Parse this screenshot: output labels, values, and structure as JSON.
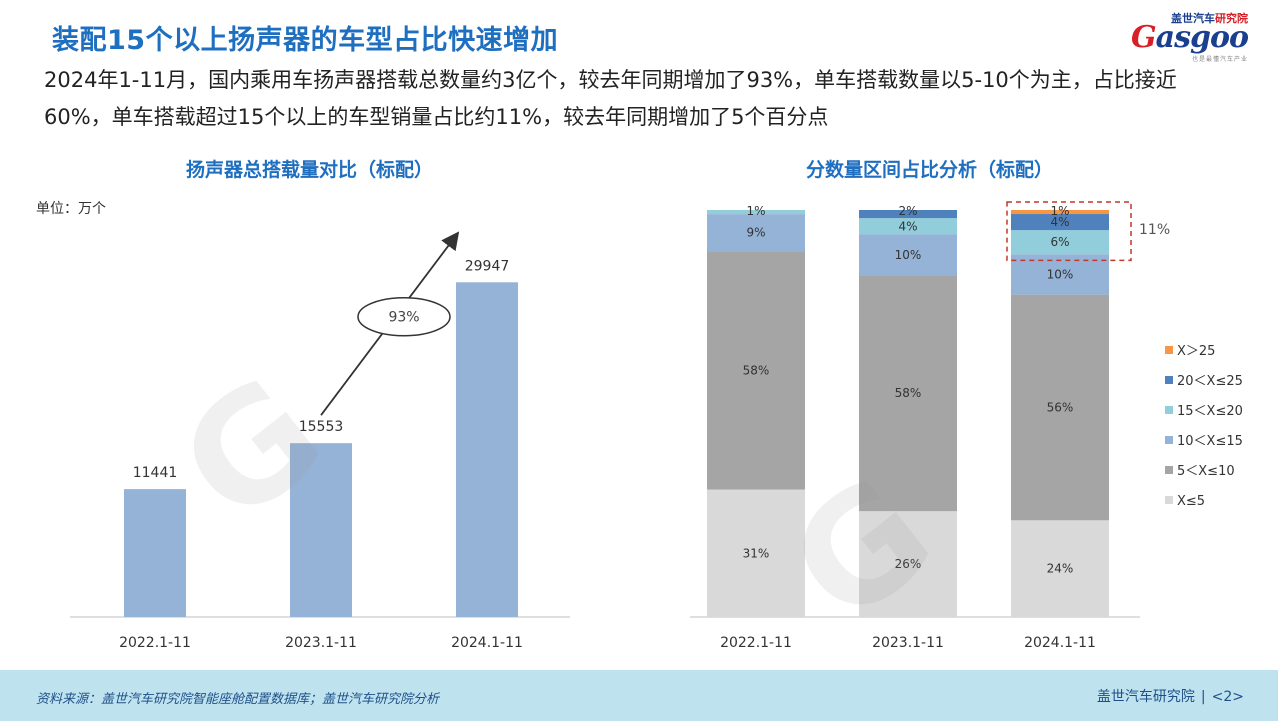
{
  "header": {
    "title": "装配15个以上扬声器的车型占比快速增加",
    "description": "2024年1-11月，国内乘用车扬声器搭载总数量约3亿个，较去年同期增加了93%，单车搭载数量以5-10个为主，占比接近60%，单车搭载超过15个以上的车型销量占比约11%，较去年同期增加了5个百分点"
  },
  "logo": {
    "cn_prefix": "盖世汽车",
    "cn_suffix": "研究院",
    "word_prefix": "G",
    "word_rest": "asgoo",
    "tagline": "也是最懂汽车产业"
  },
  "chart_data": [
    {
      "type": "bar",
      "title": "扬声器总搭载量对比（标配）",
      "unit_label": "单位：万个",
      "categories": [
        "2022.1-11",
        "2023.1-11",
        "2024.1-11"
      ],
      "values": [
        11441,
        15553,
        29947
      ],
      "ylim": [
        0,
        34000
      ],
      "color": "#95b3d7",
      "annotation": {
        "text": "93%",
        "from_category": 1,
        "to_category": 2
      }
    },
    {
      "type": "bar",
      "stacked": true,
      "percent": true,
      "title": "分数量区间占比分析（标配）",
      "categories": [
        "2022.1-11",
        "2023.1-11",
        "2024.1-11"
      ],
      "series": [
        {
          "name": "X≤5",
          "color": "#d9d9d9",
          "values": [
            31,
            26,
            24
          ],
          "labels": [
            "31%",
            "26%",
            "24%"
          ]
        },
        {
          "name": "5＜X≤10",
          "color": "#a5a5a5",
          "values": [
            58,
            58,
            56
          ],
          "labels": [
            "58%",
            "58%",
            "56%"
          ]
        },
        {
          "name": "10＜X≤15",
          "color": "#95b3d7",
          "values": [
            9,
            10,
            10
          ],
          "labels": [
            "9%",
            "10%",
            "10%"
          ]
        },
        {
          "name": "15＜X≤20",
          "color": "#92cddc",
          "values": [
            1,
            4,
            6
          ],
          "labels": [
            "1%",
            "4%",
            "6%"
          ]
        },
        {
          "name": "20＜X≤25",
          "color": "#4f81bd",
          "values": [
            0,
            2,
            4
          ],
          "labels": [
            "",
            "2%",
            "4%"
          ]
        },
        {
          "name": "X＞25",
          "color": "#f79646",
          "values": [
            0,
            0,
            1
          ],
          "labels": [
            "",
            "",
            "1%"
          ]
        }
      ],
      "legend_position": "right",
      "highlight": {
        "category": 2,
        "text": "11%",
        "color": "#c0392b"
      }
    }
  ],
  "footer": {
    "source": "资料来源：盖世汽车研究院智能座舱配置数据库；盖世汽车研究院分析",
    "brand": "盖世汽车研究院",
    "page": "<2>"
  }
}
